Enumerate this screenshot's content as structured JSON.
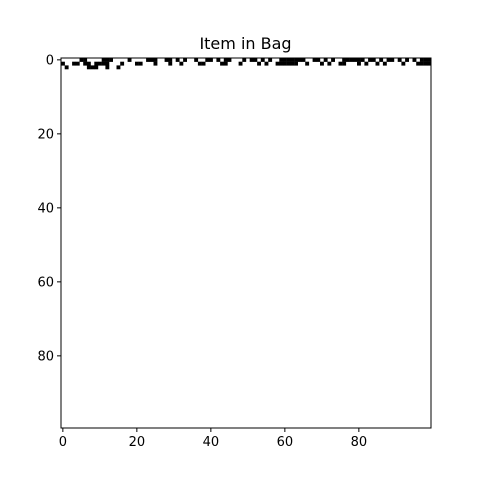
{
  "chart_data": {
    "type": "heatmap",
    "title": "Item in Bag",
    "xlabel": "",
    "ylabel": "",
    "grid": false,
    "legend": "none",
    "xlim": [
      -0.5,
      99.5
    ],
    "ylim": [
      99.5,
      -0.5
    ],
    "x_ticks": [
      0,
      20,
      40,
      60,
      80
    ],
    "y_ticks": [
      0,
      20,
      40,
      60,
      80
    ],
    "shape": [
      100,
      100
    ],
    "colormap": "binary",
    "colors": {
      "zero": "#ffffff",
      "one": "#000000"
    },
    "row_note_empty_from": 3,
    "filled_cells": [
      [
        0,
        5
      ],
      [
        0,
        6
      ],
      [
        0,
        11
      ],
      [
        0,
        12
      ],
      [
        0,
        13
      ],
      [
        0,
        18
      ],
      [
        0,
        23
      ],
      [
        0,
        24
      ],
      [
        0,
        25
      ],
      [
        0,
        28
      ],
      [
        0,
        29
      ],
      [
        0,
        31
      ],
      [
        0,
        33
      ],
      [
        0,
        36
      ],
      [
        0,
        39
      ],
      [
        0,
        40
      ],
      [
        0,
        42
      ],
      [
        0,
        44
      ],
      [
        0,
        45
      ],
      [
        0,
        49
      ],
      [
        0,
        51
      ],
      [
        0,
        52
      ],
      [
        0,
        54
      ],
      [
        0,
        56
      ],
      [
        0,
        59
      ],
      [
        0,
        60
      ],
      [
        0,
        61
      ],
      [
        0,
        62
      ],
      [
        0,
        63
      ],
      [
        0,
        64
      ],
      [
        0,
        65
      ],
      [
        0,
        68
      ],
      [
        0,
        69
      ],
      [
        0,
        71
      ],
      [
        0,
        73
      ],
      [
        0,
        76
      ],
      [
        0,
        77
      ],
      [
        0,
        78
      ],
      [
        0,
        79
      ],
      [
        0,
        80
      ],
      [
        0,
        81
      ],
      [
        0,
        83
      ],
      [
        0,
        84
      ],
      [
        0,
        86
      ],
      [
        0,
        88
      ],
      [
        0,
        89
      ],
      [
        0,
        91
      ],
      [
        0,
        93
      ],
      [
        0,
        95
      ],
      [
        0,
        97
      ],
      [
        0,
        98
      ],
      [
        0,
        99
      ],
      [
        1,
        0
      ],
      [
        1,
        3
      ],
      [
        1,
        4
      ],
      [
        1,
        6
      ],
      [
        1,
        7
      ],
      [
        1,
        9
      ],
      [
        1,
        10
      ],
      [
        1,
        11
      ],
      [
        1,
        12
      ],
      [
        1,
        16
      ],
      [
        1,
        20
      ],
      [
        1,
        21
      ],
      [
        1,
        25
      ],
      [
        1,
        29
      ],
      [
        1,
        32
      ],
      [
        1,
        37
      ],
      [
        1,
        38
      ],
      [
        1,
        43
      ],
      [
        1,
        44
      ],
      [
        1,
        48
      ],
      [
        1,
        53
      ],
      [
        1,
        55
      ],
      [
        1,
        58
      ],
      [
        1,
        59
      ],
      [
        1,
        60
      ],
      [
        1,
        61
      ],
      [
        1,
        62
      ],
      [
        1,
        63
      ],
      [
        1,
        66
      ],
      [
        1,
        70
      ],
      [
        1,
        72
      ],
      [
        1,
        75
      ],
      [
        1,
        76
      ],
      [
        1,
        80
      ],
      [
        1,
        82
      ],
      [
        1,
        85
      ],
      [
        1,
        87
      ],
      [
        1,
        92
      ],
      [
        1,
        96
      ],
      [
        1,
        97
      ],
      [
        1,
        98
      ],
      [
        1,
        99
      ],
      [
        2,
        1
      ],
      [
        2,
        7
      ],
      [
        2,
        8
      ],
      [
        2,
        9
      ],
      [
        2,
        12
      ],
      [
        2,
        15
      ]
    ]
  }
}
